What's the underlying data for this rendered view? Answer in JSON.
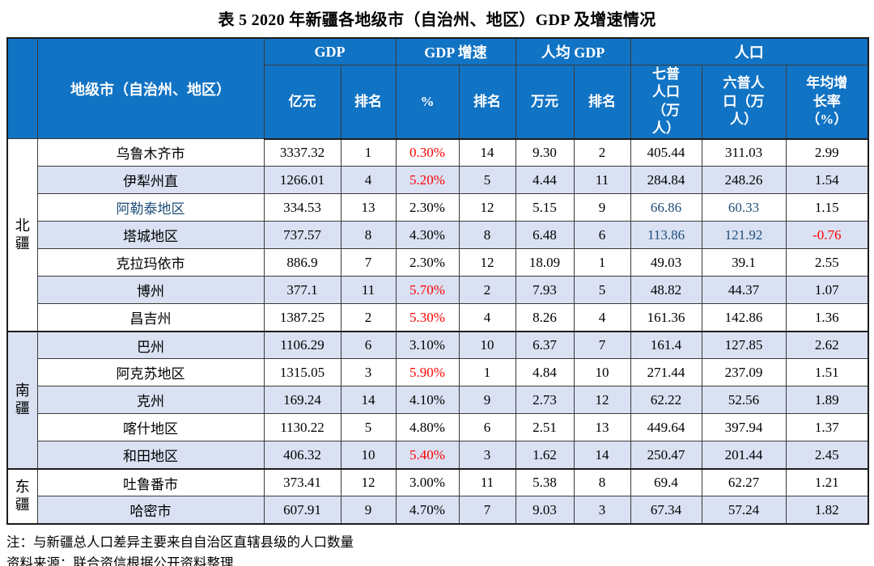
{
  "title": "表 5 2020 年新疆各地级市（自治州、地区）GDP 及增速情况",
  "notes": {
    "note1": "注：与新疆总人口差异主要来自自治区直辖县级的人口数量",
    "note2": "资料来源：联合资信根据公开资料整理"
  },
  "colors": {
    "header_bg": "#1173C4",
    "stripe_bg": "#D9E1F2",
    "highlight_red": "#FF0000",
    "highlight_blue": "#1F4E79",
    "border": "#3B3B3B"
  },
  "chart_data": {
    "type": "table",
    "title": "表 5 2020 年新疆各地级市（自治州、地区）GDP 及增速情况",
    "header": {
      "city_column": "地级市（自治州、地区）",
      "groups": [
        {
          "label": "GDP",
          "subcols": [
            "亿元",
            "排名"
          ]
        },
        {
          "label": "GDP 增速",
          "subcols": [
            "%",
            "排名"
          ]
        },
        {
          "label": "人均 GDP",
          "subcols": [
            "万元",
            "排名"
          ]
        },
        {
          "label": "人口",
          "subcols": [
            "七普人口（万人）",
            "六普人口（万人）",
            "年均增长率（%）"
          ]
        }
      ]
    },
    "regions": [
      {
        "label": "北疆",
        "row_span": 7,
        "shaded": false
      },
      {
        "label": "南疆",
        "row_span": 5,
        "shaded": true
      },
      {
        "label": "东疆",
        "row_span": 2,
        "shaded": false
      }
    ],
    "rows": [
      {
        "region": "北疆",
        "city": {
          "t": "乌鲁木齐市"
        },
        "values": [
          {
            "t": "3337.32"
          },
          {
            "t": "1"
          },
          {
            "t": "0.30%",
            "c": "red"
          },
          {
            "t": "14"
          },
          {
            "t": "9.30"
          },
          {
            "t": "2"
          },
          {
            "t": "405.44"
          },
          {
            "t": "311.03"
          },
          {
            "t": "2.99"
          }
        ]
      },
      {
        "region": "北疆",
        "city": {
          "t": "伊犁州直"
        },
        "values": [
          {
            "t": "1266.01"
          },
          {
            "t": "4"
          },
          {
            "t": "5.20%",
            "c": "red"
          },
          {
            "t": "5"
          },
          {
            "t": "4.44"
          },
          {
            "t": "11"
          },
          {
            "t": "284.84"
          },
          {
            "t": "248.26"
          },
          {
            "t": "1.54"
          }
        ]
      },
      {
        "region": "北疆",
        "city": {
          "t": "阿勒泰地区",
          "c": "blue"
        },
        "values": [
          {
            "t": "334.53"
          },
          {
            "t": "13"
          },
          {
            "t": "2.30%"
          },
          {
            "t": "12"
          },
          {
            "t": "5.15"
          },
          {
            "t": "9"
          },
          {
            "t": "66.86",
            "c": "blue"
          },
          {
            "t": "60.33",
            "c": "blue"
          },
          {
            "t": "1.15"
          }
        ]
      },
      {
        "region": "北疆",
        "city": {
          "t": "塔城地区"
        },
        "values": [
          {
            "t": "737.57"
          },
          {
            "t": "8"
          },
          {
            "t": "4.30%"
          },
          {
            "t": "8"
          },
          {
            "t": "6.48"
          },
          {
            "t": "6"
          },
          {
            "t": "113.86",
            "c": "blue"
          },
          {
            "t": "121.92",
            "c": "blue"
          },
          {
            "t": "-0.76",
            "c": "red"
          }
        ]
      },
      {
        "region": "北疆",
        "city": {
          "t": "克拉玛依市"
        },
        "values": [
          {
            "t": "886.9"
          },
          {
            "t": "7"
          },
          {
            "t": "2.30%"
          },
          {
            "t": "12"
          },
          {
            "t": "18.09"
          },
          {
            "t": "1"
          },
          {
            "t": "49.03"
          },
          {
            "t": "39.1"
          },
          {
            "t": "2.55"
          }
        ]
      },
      {
        "region": "北疆",
        "city": {
          "t": "博州"
        },
        "values": [
          {
            "t": "377.1"
          },
          {
            "t": "11"
          },
          {
            "t": "5.70%",
            "c": "red"
          },
          {
            "t": "2"
          },
          {
            "t": "7.93"
          },
          {
            "t": "5"
          },
          {
            "t": "48.82"
          },
          {
            "t": "44.37"
          },
          {
            "t": "1.07"
          }
        ]
      },
      {
        "region": "北疆",
        "city": {
          "t": "昌吉州"
        },
        "values": [
          {
            "t": "1387.25"
          },
          {
            "t": "2"
          },
          {
            "t": "5.30%",
            "c": "red"
          },
          {
            "t": "4"
          },
          {
            "t": "8.26"
          },
          {
            "t": "4"
          },
          {
            "t": "161.36"
          },
          {
            "t": "142.86"
          },
          {
            "t": "1.36"
          }
        ]
      },
      {
        "region": "南疆",
        "city": {
          "t": "巴州"
        },
        "values": [
          {
            "t": "1106.29"
          },
          {
            "t": "6"
          },
          {
            "t": "3.10%"
          },
          {
            "t": "10"
          },
          {
            "t": "6.37"
          },
          {
            "t": "7"
          },
          {
            "t": "161.4"
          },
          {
            "t": "127.85"
          },
          {
            "t": "2.62"
          }
        ]
      },
      {
        "region": "南疆",
        "city": {
          "t": "阿克苏地区"
        },
        "values": [
          {
            "t": "1315.05"
          },
          {
            "t": "3"
          },
          {
            "t": "5.90%",
            "c": "red"
          },
          {
            "t": "1"
          },
          {
            "t": "4.84"
          },
          {
            "t": "10"
          },
          {
            "t": "271.44"
          },
          {
            "t": "237.09"
          },
          {
            "t": "1.51"
          }
        ]
      },
      {
        "region": "南疆",
        "city": {
          "t": "克州"
        },
        "values": [
          {
            "t": "169.24"
          },
          {
            "t": "14"
          },
          {
            "t": "4.10%"
          },
          {
            "t": "9"
          },
          {
            "t": "2.73"
          },
          {
            "t": "12"
          },
          {
            "t": "62.22"
          },
          {
            "t": "52.56"
          },
          {
            "t": "1.89"
          }
        ]
      },
      {
        "region": "南疆",
        "city": {
          "t": "喀什地区"
        },
        "values": [
          {
            "t": "1130.22"
          },
          {
            "t": "5"
          },
          {
            "t": "4.80%"
          },
          {
            "t": "6"
          },
          {
            "t": "2.51"
          },
          {
            "t": "13"
          },
          {
            "t": "449.64"
          },
          {
            "t": "397.94"
          },
          {
            "t": "1.37"
          }
        ]
      },
      {
        "region": "南疆",
        "city": {
          "t": "和田地区"
        },
        "values": [
          {
            "t": "406.32"
          },
          {
            "t": "10"
          },
          {
            "t": "5.40%",
            "c": "red"
          },
          {
            "t": "3"
          },
          {
            "t": "1.62"
          },
          {
            "t": "14"
          },
          {
            "t": "250.47"
          },
          {
            "t": "201.44"
          },
          {
            "t": "2.45"
          }
        ]
      },
      {
        "region": "东疆",
        "city": {
          "t": "吐鲁番市"
        },
        "values": [
          {
            "t": "373.41"
          },
          {
            "t": "12"
          },
          {
            "t": "3.00%"
          },
          {
            "t": "11"
          },
          {
            "t": "5.38"
          },
          {
            "t": "8"
          },
          {
            "t": "69.4"
          },
          {
            "t": "62.27"
          },
          {
            "t": "1.21"
          }
        ]
      },
      {
        "region": "东疆",
        "city": {
          "t": "哈密市"
        },
        "values": [
          {
            "t": "607.91"
          },
          {
            "t": "9"
          },
          {
            "t": "4.70%"
          },
          {
            "t": "7"
          },
          {
            "t": "9.03"
          },
          {
            "t": "3"
          },
          {
            "t": "67.34"
          },
          {
            "t": "57.24"
          },
          {
            "t": "1.82"
          }
        ]
      }
    ]
  }
}
